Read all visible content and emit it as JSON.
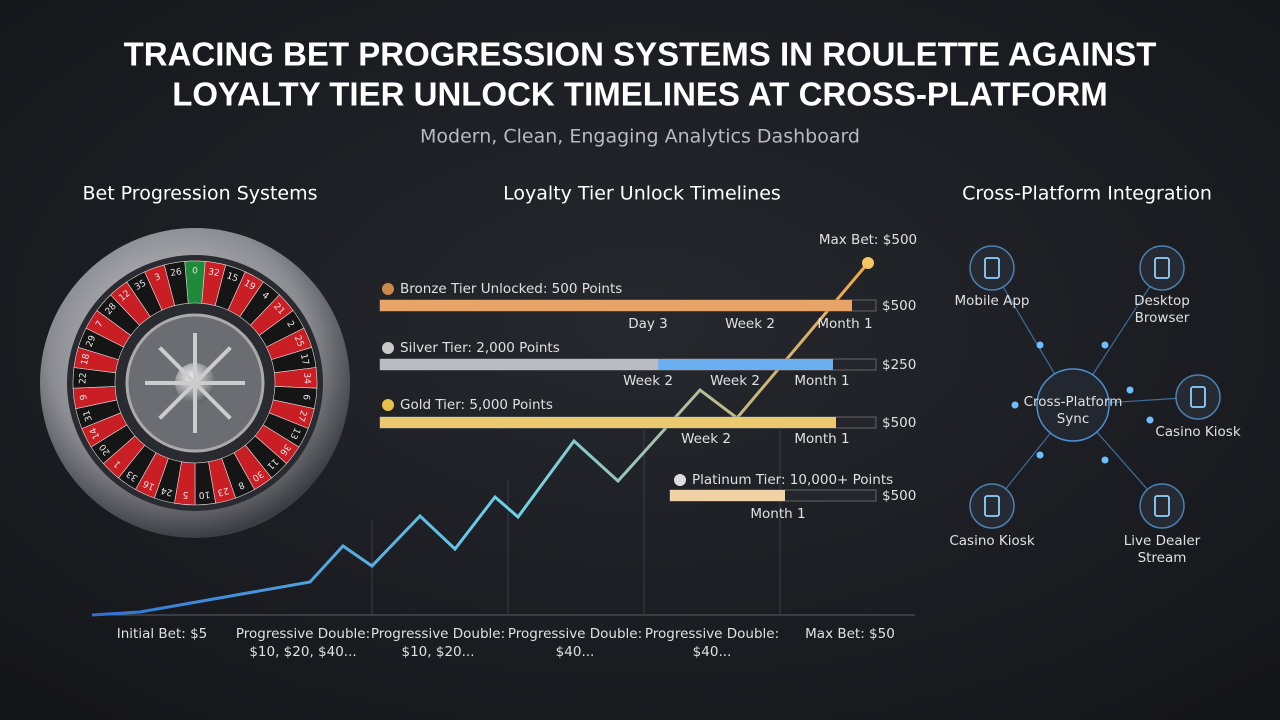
{
  "header": {
    "title": [
      "TRACING BET PROGRESSION SYSTEMS IN ROULETTE AGAINST",
      "LOYALTY TIER UNLOCK TIMELINES AT CROSS-PLATFORM"
    ],
    "subtitle": "Modern, Clean, Engaging Analytics Dashboard"
  },
  "bet_progression": {
    "title": "Bet Progression Systems",
    "wheel_numbers": [
      "0",
      "32",
      "15",
      "19",
      "4",
      "21",
      "2",
      "25",
      "17",
      "34",
      "6",
      "27",
      "13",
      "36",
      "11",
      "30",
      "8",
      "23",
      "10",
      "5",
      "24",
      "16",
      "33",
      "1",
      "20",
      "14",
      "31",
      "9",
      "22",
      "18",
      "29",
      "7",
      "28",
      "12",
      "35",
      "3",
      "26"
    ]
  },
  "loyalty": {
    "title": "Loyalty Tier Unlock Timelines",
    "annotation": "Max Bet: $500",
    "tiers": [
      {
        "label": "Bronze Tier Unlocked: 500 Points",
        "amount": "$500",
        "milestones": [
          "Day 3",
          "Week 2",
          "Month 1"
        ]
      },
      {
        "label": "Silver Tier: 2,000 Points",
        "amount": "$250",
        "milestones": [
          "Week 2",
          "Week 2",
          "Month 1"
        ]
      },
      {
        "label": "Gold Tier: 5,000 Points",
        "amount": "$500",
        "milestones": [
          "Week 2",
          "Month 1"
        ]
      },
      {
        "label": "Platinum Tier: 10,000+ Points",
        "amount": "$500",
        "milestones": [
          "Month 1"
        ]
      }
    ],
    "x_labels": [
      [
        "Initial Bet: $5"
      ],
      [
        "Progressive Double:",
        "$10, $20, $40..."
      ],
      [
        "Progressive Double:",
        "$10, $20..."
      ],
      [
        "Progressive Double:",
        "$40..."
      ],
      [
        "Progressive Double:",
        "$40..."
      ],
      [
        "Max Bet: $50"
      ]
    ]
  },
  "cross_platform": {
    "title": "Cross-Platform Integration",
    "hub": [
      "Cross-Platform",
      "Sync"
    ],
    "nodes": [
      [
        "Mobile App"
      ],
      [
        "Desktop",
        "Browser"
      ],
      [
        "Casino Kiosk"
      ],
      [
        "Casino Kiosk"
      ],
      [
        "Live Dealer",
        "Stream"
      ]
    ]
  }
}
